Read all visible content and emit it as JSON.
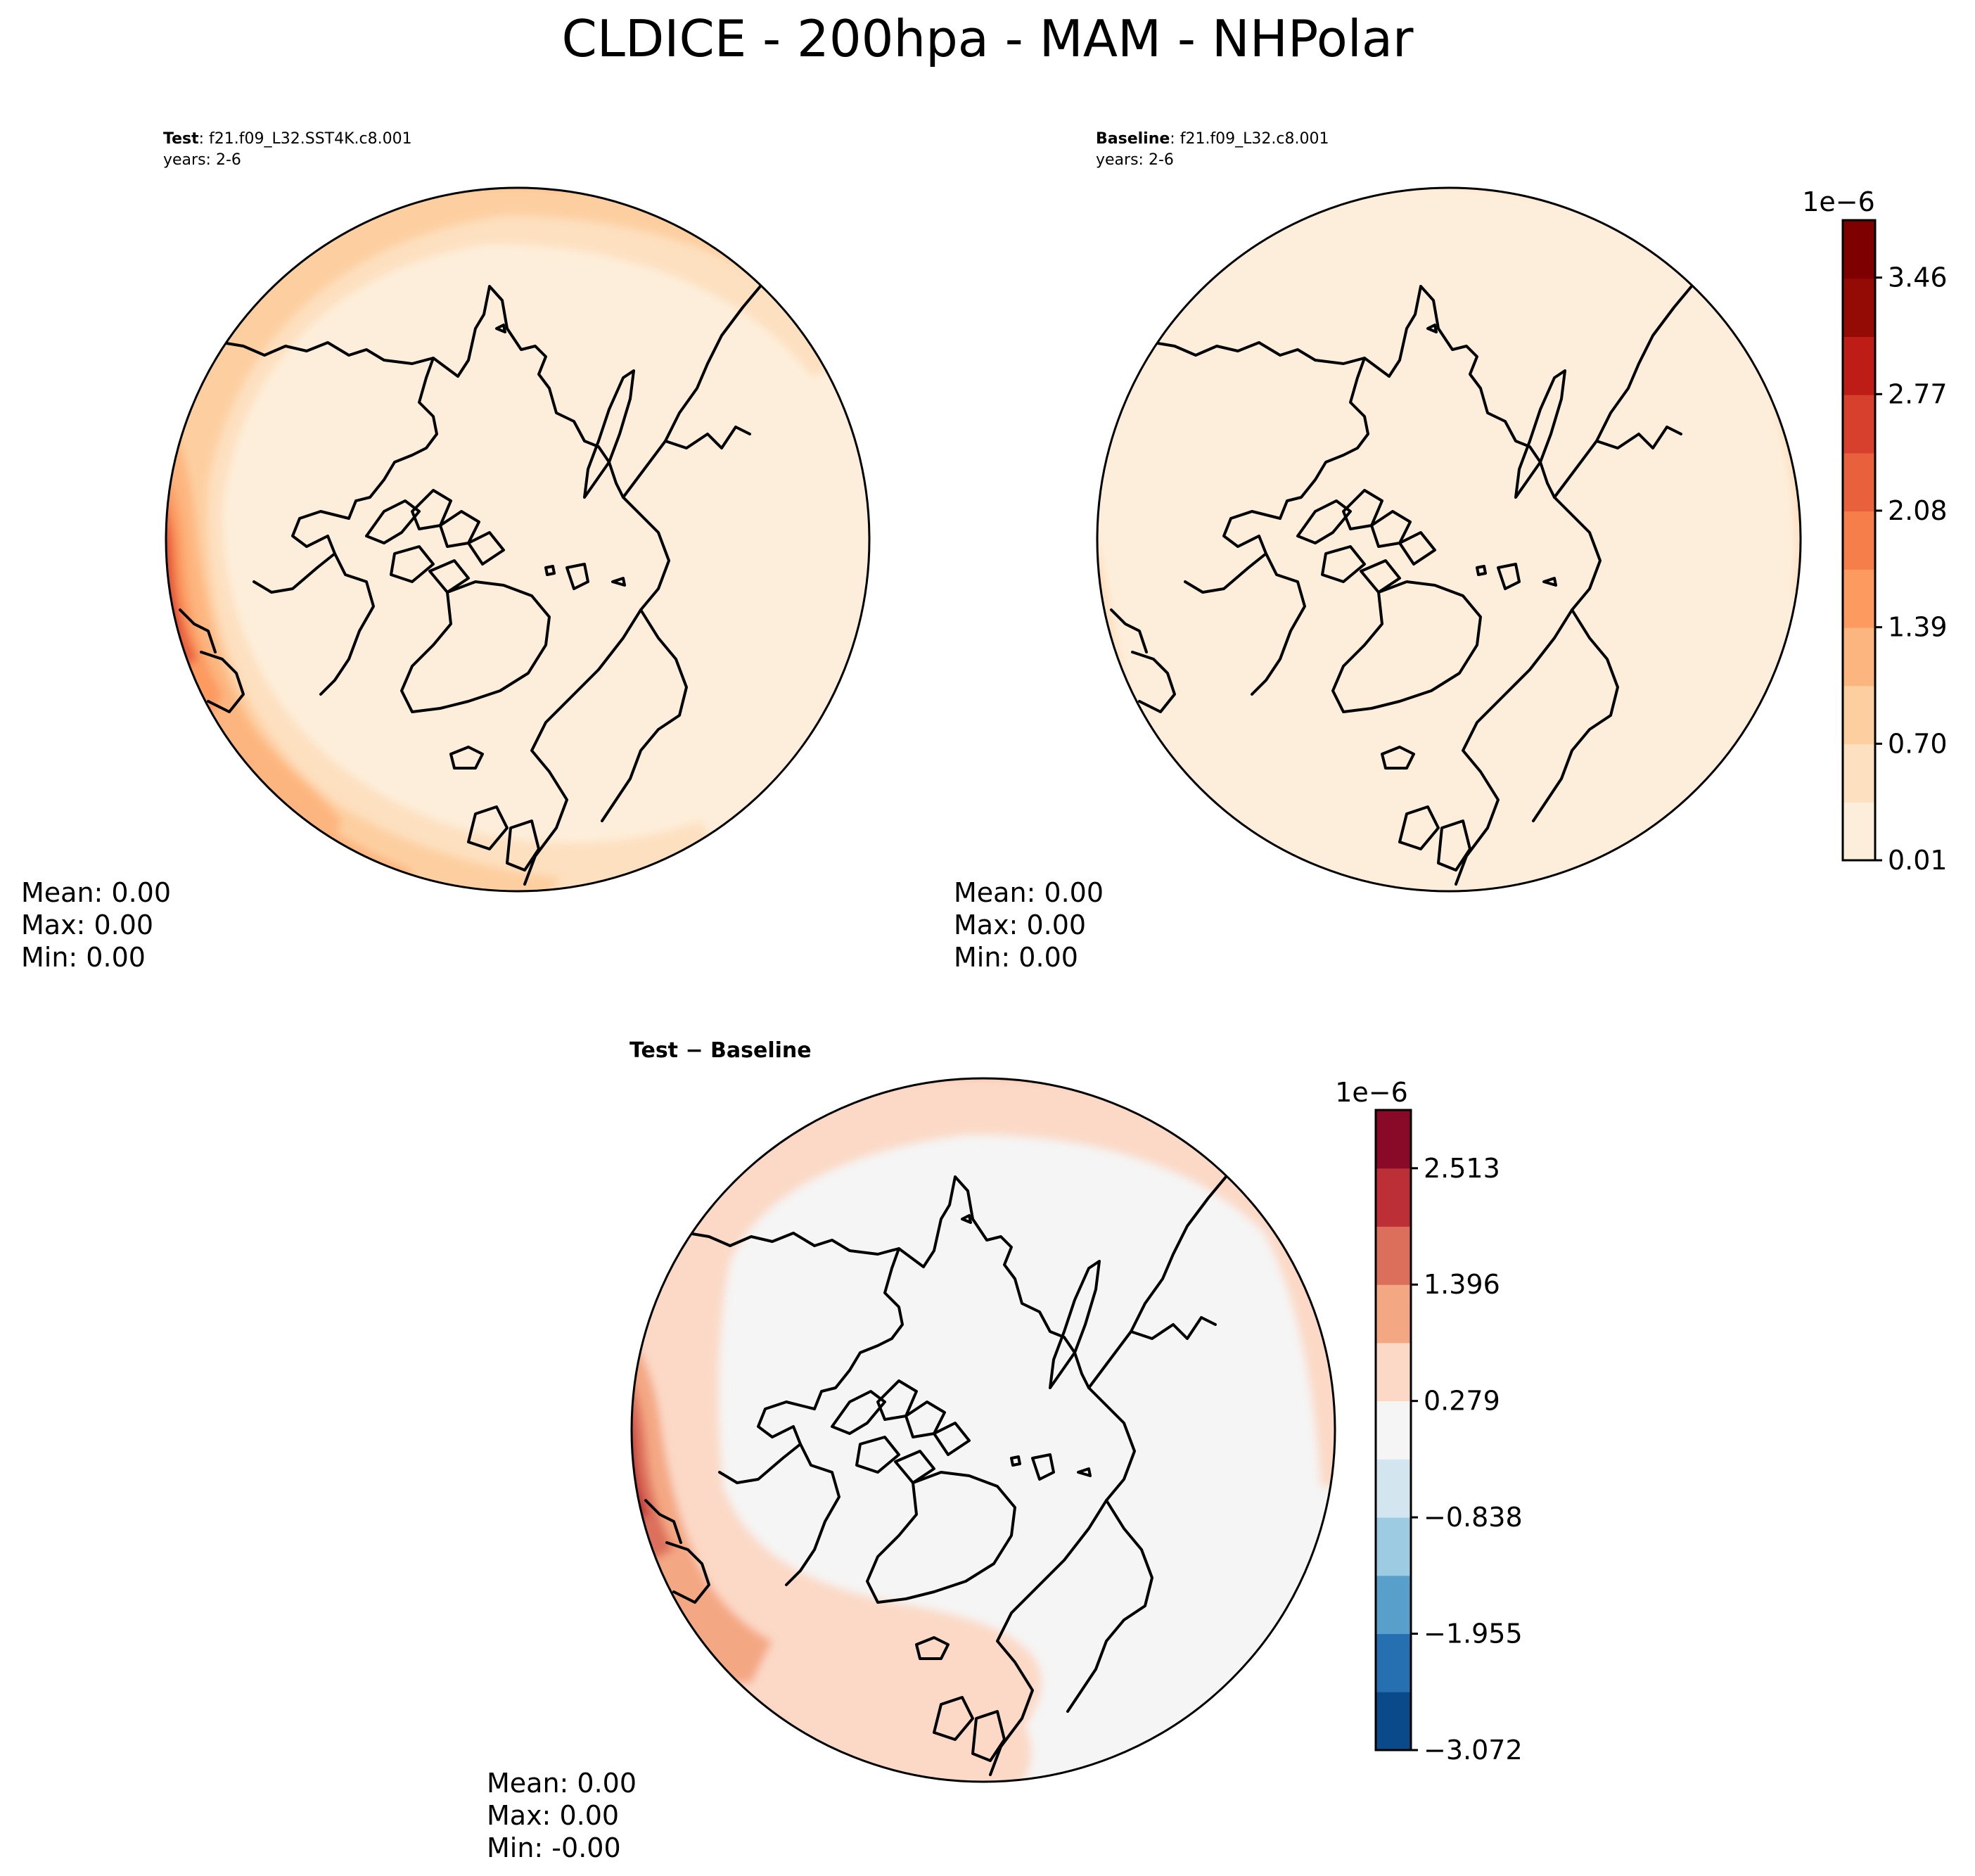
{
  "title": "CLDICE - 200hpa - MAM - NHPolar",
  "panels": [
    {
      "id": "test",
      "label_bold": "Test",
      "label_rest": ": f21.f09_L32.SST4K.c8.001",
      "years": "years: 2-6",
      "stats": {
        "mean": "Mean:  0.00",
        "max": "Max:  0.00",
        "min": "Min:  0.00"
      }
    },
    {
      "id": "baseline",
      "label_bold": "Baseline",
      "label_rest": ": f21.f09_L32.c8.001",
      "years": "years: 2-6",
      "stats": {
        "mean": "Mean:  0.00",
        "max": "Max:  0.00",
        "min": "Min:  0.00"
      }
    },
    {
      "id": "diff",
      "label_bold": "Test − Baseline",
      "label_rest": "",
      "years": "",
      "stats": {
        "mean": "Mean:  0.00",
        "max": "Max:  0.00",
        "min": "Min: -0.00"
      }
    }
  ],
  "colorbars": {
    "main": {
      "exponent": "1e−6",
      "ticks": [
        "0.01",
        "0.70",
        "1.39",
        "2.08",
        "2.77",
        "3.46"
      ],
      "tick_values": [
        0.01,
        0.7,
        1.39,
        2.08,
        2.77,
        3.46
      ],
      "range": [
        0.01,
        3.8
      ],
      "colors": [
        "#fdeedb",
        "#fde0c0",
        "#fdcfa0",
        "#fdb57f",
        "#fc9a60",
        "#f67e4a",
        "#e8603c",
        "#d6402d",
        "#bd1c17",
        "#940a05",
        "#7f0000"
      ]
    },
    "diff": {
      "exponent": "1e−6",
      "ticks": [
        "2.513",
        "1.396",
        "0.279",
        "−0.838",
        "−1.955",
        "−3.072"
      ],
      "tick_values": [
        2.513,
        1.396,
        0.279,
        -0.838,
        -1.955,
        -3.072
      ],
      "range": [
        -3.072,
        3.072
      ],
      "colors": [
        "#0b4a8a",
        "#2670b2",
        "#58a0cb",
        "#9ccbe2",
        "#d3e6f0",
        "#f5f5f5",
        "#fbd9c6",
        "#f4a783",
        "#dc6f5b",
        "#bd2f36",
        "#880a28"
      ]
    }
  },
  "chart_data": [
    {
      "type": "heatmap",
      "title": "Test : f21.f09_L32.SST4K.c8.001",
      "subtitle": "years: 2-6",
      "projection": "north-polar-stereographic",
      "field": "CLDICE",
      "colorbar_ticks": [
        0.01,
        0.7,
        1.39,
        2.08,
        2.77,
        3.46
      ],
      "colorbar_exponent": "1e−6",
      "mean": 0.0,
      "max": 0.0,
      "min": 0.0
    },
    {
      "type": "heatmap",
      "title": "Baseline : f21.f09_L32.c8.001",
      "subtitle": "years: 2-6",
      "projection": "north-polar-stereographic",
      "field": "CLDICE",
      "colorbar_ticks": [
        0.01,
        0.7,
        1.39,
        2.08,
        2.77,
        3.46
      ],
      "colorbar_exponent": "1e−6",
      "mean": 0.0,
      "max": 0.0,
      "min": 0.0
    },
    {
      "type": "heatmap",
      "title": "Test − Baseline",
      "projection": "north-polar-stereographic",
      "field": "CLDICE",
      "colorbar_ticks": [
        -3.072,
        -1.955,
        -0.838,
        0.279,
        1.396,
        2.513
      ],
      "colorbar_exponent": "1e−6",
      "mean": 0.0,
      "max": 0.0,
      "min": -0.0
    }
  ]
}
